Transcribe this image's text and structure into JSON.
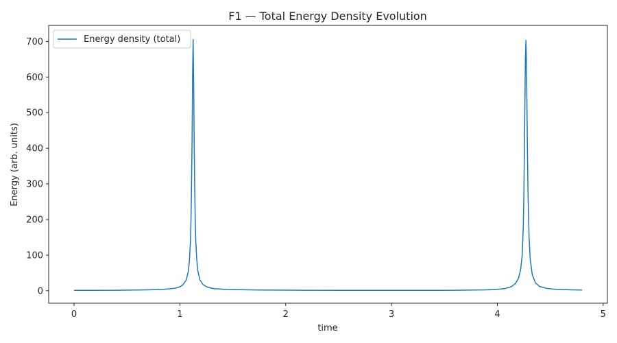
{
  "chart_data": {
    "type": "line",
    "title": "F1 — Total Energy Density Evolution",
    "xlabel": "time",
    "ylabel": "Energy (arb. units)",
    "xlim": [
      -0.24,
      5.04
    ],
    "ylim": [
      -35,
      745
    ],
    "xticks": [
      0,
      1,
      2,
      3,
      4,
      5
    ],
    "yticks": [
      0,
      100,
      200,
      300,
      400,
      500,
      600,
      700
    ],
    "grid": false,
    "legend_position": "top-left",
    "series": [
      {
        "name": "Energy density (total)",
        "color": "#1f77b4",
        "x": [
          0.0,
          0.4,
          0.7,
          0.85,
          0.95,
          1.0,
          1.03,
          1.06,
          1.08,
          1.09,
          1.1,
          1.105,
          1.11,
          1.115,
          1.12,
          1.125,
          1.13,
          1.135,
          1.14,
          1.145,
          1.15,
          1.16,
          1.17,
          1.19,
          1.22,
          1.26,
          1.32,
          1.45,
          1.7,
          2.2,
          3.0,
          3.6,
          3.9,
          4.0,
          4.07,
          4.13,
          4.17,
          4.2,
          4.22,
          4.235,
          4.245,
          4.25,
          4.255,
          4.26,
          4.265,
          4.27,
          4.275,
          4.28,
          4.285,
          4.29,
          4.3,
          4.31,
          4.33,
          4.36,
          4.4,
          4.46,
          4.55,
          4.7,
          4.8
        ],
        "y": [
          1,
          1.3,
          2.5,
          4,
          7,
          11,
          17,
          30,
          55,
          85,
          140,
          200,
          300,
          420,
          600,
          705,
          590,
          420,
          290,
          200,
          140,
          85,
          55,
          30,
          17,
          10,
          6,
          3.5,
          2.2,
          1.4,
          1,
          1.3,
          2.5,
          4,
          6,
          11,
          20,
          35,
          60,
          100,
          180,
          260,
          380,
          520,
          650,
          703,
          640,
          510,
          380,
          270,
          150,
          90,
          45,
          22,
          12,
          7,
          4,
          2.5,
          2
        ]
      }
    ]
  }
}
